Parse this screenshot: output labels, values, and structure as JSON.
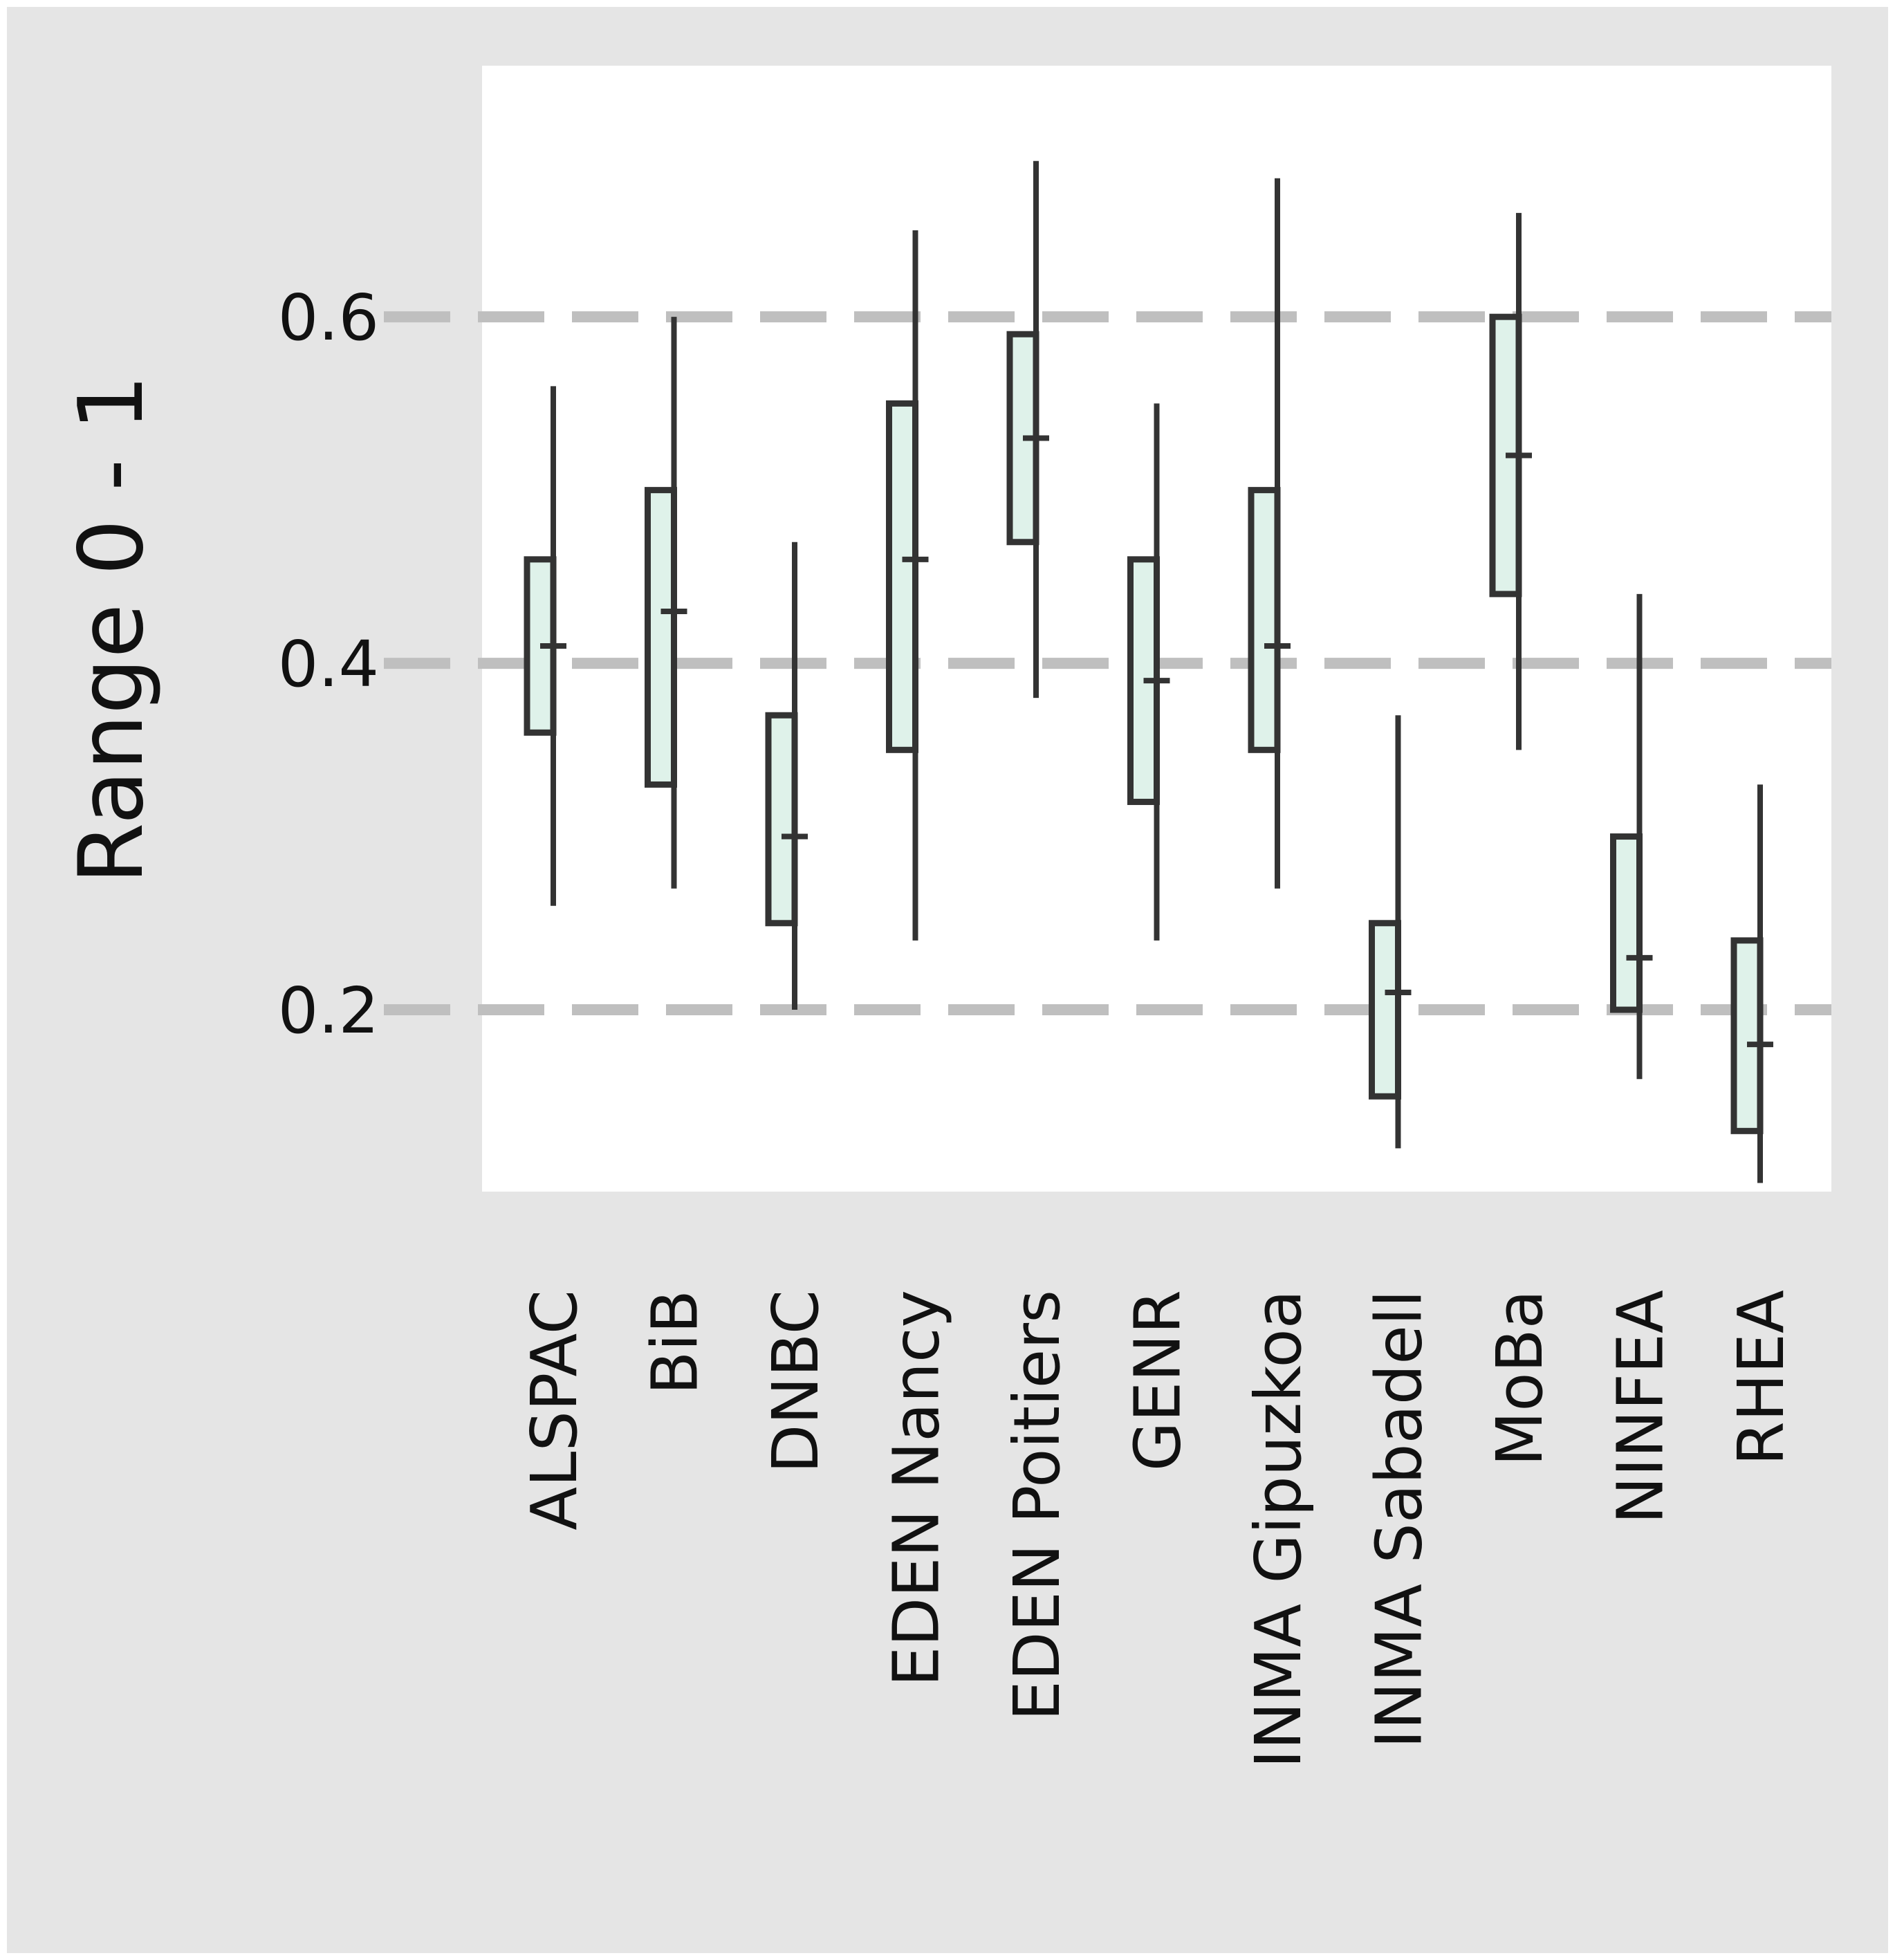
{
  "chart_data": {
    "type": "box",
    "title": "",
    "xlabel": "",
    "ylabel": "Range 0 - 1",
    "ylim": [
      0.095,
      0.745
    ],
    "yticks": [
      0.2,
      0.4,
      0.6
    ],
    "ytick_labels": [
      "0.2",
      "0.4",
      "0.6"
    ],
    "grid": "horizontal dashed",
    "colors": {
      "background": "#e5e5e5",
      "panel": "#ffffff",
      "gridline": "#bfbfbf",
      "box_fill": "#dff2ea",
      "box_stroke": "#333333"
    },
    "categories": [
      "ALSPAC",
      "BiB",
      "DNBC",
      "EDEN Nancy",
      "EDEN Poitiers",
      "GENR",
      "INMA Gipuzkoa",
      "INMA Sabadell",
      "MoBa",
      "NINFEA",
      "RHEA"
    ],
    "boxes": [
      {
        "category": "ALSPAC",
        "min": 0.26,
        "q1": 0.36,
        "median": 0.41,
        "q3": 0.46,
        "max": 0.56
      },
      {
        "category": "BiB",
        "min": 0.27,
        "q1": 0.33,
        "median": 0.43,
        "q3": 0.5,
        "max": 0.6
      },
      {
        "category": "DNBC",
        "min": 0.2,
        "q1": 0.25,
        "median": 0.3,
        "q3": 0.37,
        "max": 0.47
      },
      {
        "category": "EDEN Nancy",
        "min": 0.24,
        "q1": 0.35,
        "median": 0.46,
        "q3": 0.55,
        "max": 0.65
      },
      {
        "category": "EDEN Poitiers",
        "min": 0.38,
        "q1": 0.47,
        "median": 0.53,
        "q3": 0.59,
        "max": 0.69
      },
      {
        "category": "GENR",
        "min": 0.24,
        "q1": 0.32,
        "median": 0.39,
        "q3": 0.46,
        "max": 0.55
      },
      {
        "category": "INMA Gipuzkoa",
        "min": 0.27,
        "q1": 0.35,
        "median": 0.41,
        "q3": 0.5,
        "max": 0.68
      },
      {
        "category": "INMA Sabadell",
        "min": 0.12,
        "q1": 0.15,
        "median": 0.21,
        "q3": 0.25,
        "max": 0.37
      },
      {
        "category": "MoBa",
        "min": 0.35,
        "q1": 0.44,
        "median": 0.52,
        "q3": 0.6,
        "max": 0.66
      },
      {
        "category": "NINFEA",
        "min": 0.16,
        "q1": 0.2,
        "median": 0.23,
        "q3": 0.3,
        "max": 0.44
      },
      {
        "category": "RHEA",
        "min": 0.1,
        "q1": 0.13,
        "median": 0.18,
        "q3": 0.24,
        "max": 0.33
      }
    ]
  }
}
